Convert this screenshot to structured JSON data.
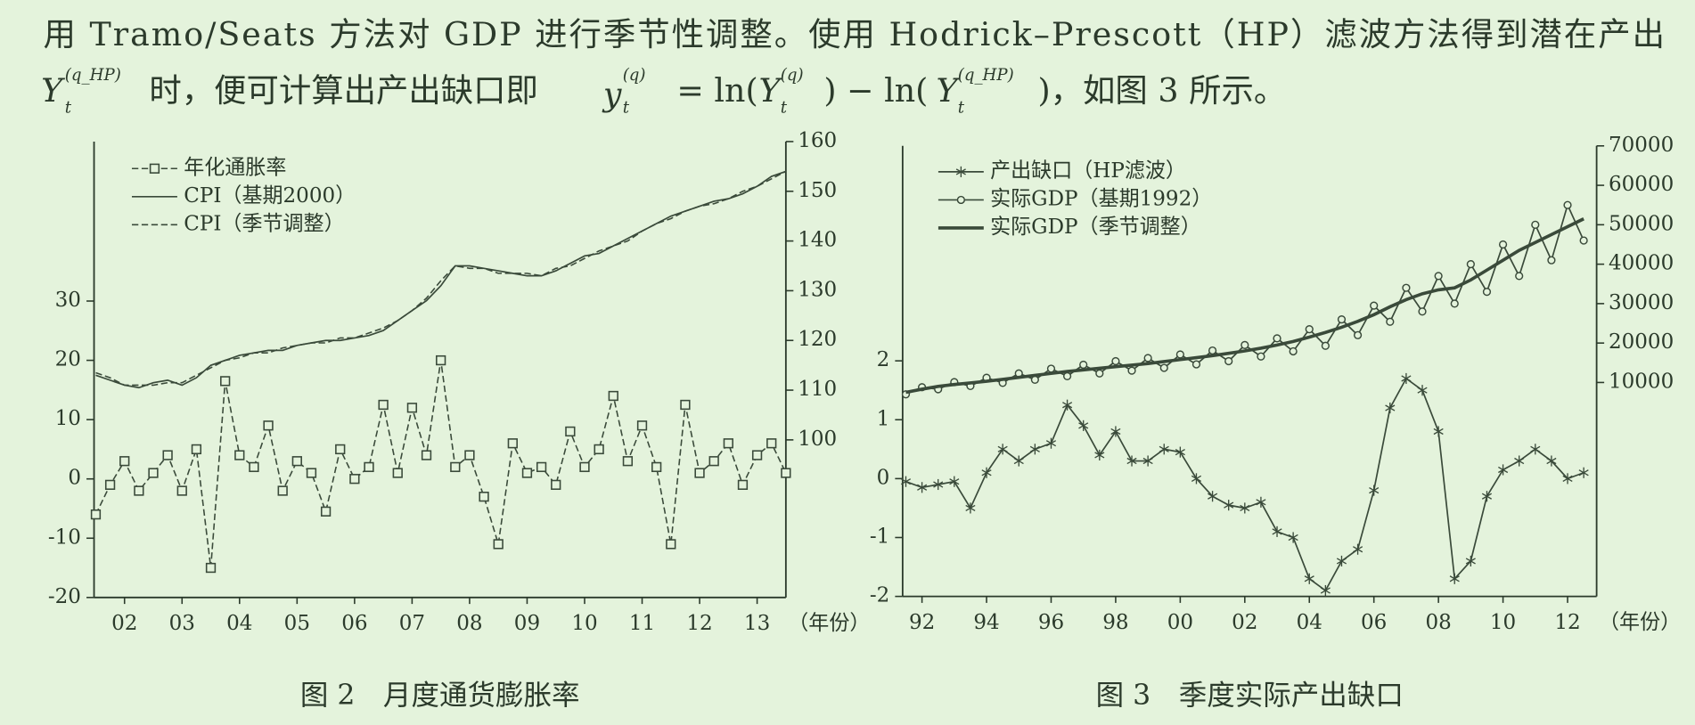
{
  "text": {
    "line1": "用 Tramo/Seats 方法对 GDP 进行季节性调整。使用 Hodrick–Prescott（HP）滤波方法得到潜在产出",
    "line2": [
      "Y",
      "t",
      "(q_HP)",
      "时，便可计算出产出缺口即",
      "y",
      "t",
      "(q)",
      "= ln(",
      "Y",
      "t",
      "(q)",
      ") − ln(",
      "Y",
      "t",
      "(q_HP)",
      ")，如图 3 所示。"
    ]
  },
  "chart_data": [
    {
      "type": "line",
      "title": "图 2　月度通货膨胀率",
      "xlabel": "（年份）",
      "x": [
        2001.5,
        2001.75,
        2002,
        2002.25,
        2002.5,
        2002.75,
        2003,
        2003.25,
        2003.5,
        2003.75,
        2004,
        2004.25,
        2004.5,
        2004.75,
        2005,
        2005.25,
        2005.5,
        2005.75,
        2006,
        2006.25,
        2006.5,
        2006.75,
        2007,
        2007.25,
        2007.5,
        2007.75,
        2008,
        2008.25,
        2008.5,
        2008.75,
        2009,
        2009.25,
        2009.5,
        2009.75,
        2010,
        2010.25,
        2010.5,
        2010.75,
        2011,
        2011.25,
        2011.5,
        2011.75,
        2012,
        2012.25,
        2012.5,
        2012.75,
        2013,
        2013.25,
        2013.5
      ],
      "xlim": [
        2001.47,
        2013.5
      ],
      "xticks": [
        {
          "value": 2002,
          "label": "02"
        },
        {
          "value": 2003,
          "label": "03"
        },
        {
          "value": 2004,
          "label": "04"
        },
        {
          "value": 2005,
          "label": "05"
        },
        {
          "value": 2006,
          "label": "06"
        },
        {
          "value": 2007,
          "label": "07"
        },
        {
          "value": 2008,
          "label": "08"
        },
        {
          "value": 2009,
          "label": "09"
        },
        {
          "value": 2010,
          "label": "10"
        },
        {
          "value": 2011,
          "label": "11"
        },
        {
          "value": 2012,
          "label": "12"
        },
        {
          "value": 2013,
          "label": "13"
        }
      ],
      "ylim": [
        -20,
        56.9
      ],
      "yticks": [
        -20,
        -10,
        0,
        10,
        20,
        30
      ],
      "y2lim": [
        68.3,
        160
      ],
      "y2ticks": [
        100,
        110,
        120,
        130,
        140,
        150,
        160
      ],
      "legend": "top-left",
      "series": [
        {
          "name": "年化通胀率",
          "color": "#3a4a3a",
          "line_style": "dashed",
          "marker": "square",
          "values": [
            -6,
            -1,
            3,
            -2,
            1,
            4,
            -2,
            5,
            -15,
            16.5,
            4,
            2,
            9,
            -2,
            3,
            1,
            -5.5,
            5,
            0,
            2,
            12.5,
            1,
            12,
            4,
            20,
            2,
            4,
            -3,
            -11,
            6,
            1,
            2,
            -1,
            8,
            2,
            5,
            14,
            3,
            9,
            2,
            -11,
            12.5,
            1,
            3,
            6,
            -1,
            4,
            6,
            1
          ]
        },
        {
          "name": "CPI（基期2000）",
          "color": "#3a4a3a",
          "line_style": "solid",
          "marker": "none",
          "axis": "y2",
          "values": [
            113,
            112,
            111,
            110.5,
            111.5,
            112,
            111,
            112.5,
            115,
            116,
            117,
            117.5,
            118,
            118,
            119,
            119.5,
            120,
            120,
            120.5,
            121,
            122,
            124,
            126,
            128,
            131,
            135,
            135,
            134.5,
            134,
            133.5,
            133,
            133,
            134,
            135.5,
            137,
            137.5,
            139,
            140.5,
            142,
            143.5,
            145,
            146,
            147,
            148,
            148.5,
            149.5,
            151,
            153,
            154
          ]
        },
        {
          "name": "CPI（季节调整）",
          "color": "#3a4a3a",
          "line_style": "dashed",
          "marker": "none",
          "axis": "y2",
          "values": [
            113.5,
            112.5,
            111,
            111,
            111,
            111.5,
            111.5,
            113,
            114.5,
            116,
            116.5,
            117.5,
            117.5,
            118.5,
            119,
            119.5,
            119.5,
            120.5,
            120.5,
            121.5,
            122.5,
            124,
            126,
            128.5,
            132,
            135,
            134.5,
            134.5,
            133.5,
            133.5,
            133.5,
            133,
            134.5,
            135,
            136.5,
            138,
            139,
            140,
            142,
            143.5,
            144.5,
            146,
            147,
            147.5,
            148.5,
            150,
            151,
            152.5,
            154
          ]
        }
      ]
    },
    {
      "type": "line",
      "title": "图 3　季度实际产出缺口",
      "xlabel": "（年份）",
      "x": [
        1991.5,
        1992,
        1992.5,
        1993,
        1993.5,
        1994,
        1994.5,
        1995,
        1995.5,
        1996,
        1996.5,
        1997,
        1997.5,
        1998,
        1998.5,
        1999,
        1999.5,
        2000,
        2000.5,
        2001,
        2001.5,
        2002,
        2002.5,
        2003,
        2003.5,
        2004,
        2004.5,
        2005,
        2005.5,
        2006,
        2006.5,
        2007,
        2007.5,
        2008,
        2008.5,
        2009,
        2009.5,
        2010,
        2010.5,
        2011,
        2011.5,
        2012,
        2012.5
      ],
      "xlim": [
        1991.4,
        2012.9
      ],
      "xticks": [
        {
          "value": 1992,
          "label": "92"
        },
        {
          "value": 1994,
          "label": "94"
        },
        {
          "value": 1996,
          "label": "96"
        },
        {
          "value": 1998,
          "label": "98"
        },
        {
          "value": 2000,
          "label": "00"
        },
        {
          "value": 2002,
          "label": "02"
        },
        {
          "value": 2004,
          "label": "04"
        },
        {
          "value": 2006,
          "label": "06"
        },
        {
          "value": 2008,
          "label": "08"
        },
        {
          "value": 2010,
          "label": "10"
        },
        {
          "value": 2012,
          "label": "12"
        }
      ],
      "ylim": [
        -2,
        5.65
      ],
      "yticks": [
        -2,
        -1,
        0,
        1,
        2
      ],
      "y2lim": [
        -44250,
        70000
      ],
      "y2ticks": [
        10000,
        20000,
        30000,
        40000,
        50000,
        60000,
        70000
      ],
      "legend": "top-left",
      "series": [
        {
          "name": "产出缺口（HP滤波）",
          "color": "#3a4a3a",
          "line_style": "solid",
          "marker": "star",
          "values": [
            -0.05,
            -0.15,
            -0.1,
            -0.05,
            -0.5,
            0.1,
            0.5,
            0.3,
            0.5,
            0.6,
            1.25,
            0.9,
            0.4,
            0.8,
            0.3,
            0.3,
            0.5,
            0.45,
            0,
            -0.3,
            -0.45,
            -0.5,
            -0.4,
            -0.9,
            -1,
            -1.7,
            -1.9,
            -1.4,
            -1.2,
            -0.2,
            1.2,
            1.7,
            1.5,
            0.8,
            -1.7,
            -1.4,
            -0.3,
            0.15,
            0.3,
            0.5,
            0.3,
            0,
            0.1
          ]
        },
        {
          "name": "实际GDP（基期1992）",
          "color": "#3a4a3a",
          "line_style": "solid",
          "marker": "circle",
          "axis": "y2",
          "values": [
            7000,
            8800,
            8300,
            10100,
            9100,
            11200,
            9900,
            12300,
            10700,
            13500,
            11600,
            14500,
            12300,
            15400,
            13000,
            16200,
            13700,
            17100,
            14600,
            18100,
            15400,
            19500,
            16600,
            21200,
            17900,
            23500,
            19300,
            26000,
            22000,
            29500,
            25400,
            34000,
            28000,
            37000,
            30000,
            40000,
            33000,
            45000,
            37000,
            50000,
            41000,
            55000,
            46000
          ]
        },
        {
          "name": "实际GDP（季节调整）",
          "color": "#3a4a3a",
          "line_style": "thick",
          "marker": "none",
          "axis": "y2",
          "values": [
            7500,
            8300,
            9000,
            9500,
            9900,
            10300,
            10800,
            11300,
            11800,
            12300,
            12800,
            13200,
            13600,
            14000,
            14400,
            14800,
            15300,
            15800,
            16300,
            16800,
            17400,
            18000,
            18700,
            19500,
            20400,
            21500,
            22700,
            24000,
            25500,
            27200,
            29200,
            31000,
            32500,
            33500,
            34000,
            36000,
            38500,
            41000,
            43500,
            45500,
            47500,
            49500,
            51500
          ]
        }
      ]
    }
  ]
}
